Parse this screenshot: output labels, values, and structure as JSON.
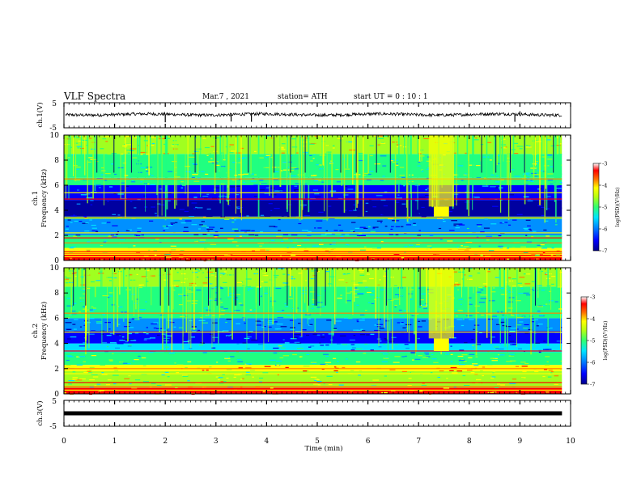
{
  "header": {
    "title": "VLF Spectra",
    "date": "Mar.7 , 2021",
    "station": "station= ATH",
    "start": "start  UT =   0 : 10 : 1"
  },
  "chart_data": [
    {
      "type": "line",
      "panel": "ch1-waveform",
      "ylabel": "ch.1(V)",
      "ylim": [
        -5,
        5
      ],
      "yticks": [
        "5",
        "-5"
      ],
      "xlim": [
        0,
        10
      ],
      "data_extent_x": [
        0,
        9.83
      ],
      "mean_value": 0.3,
      "noise_amplitude": 0.6,
      "spikes": [
        {
          "x": 2.0,
          "y": -2.8
        },
        {
          "x": 3.3,
          "y": -2.5
        },
        {
          "x": 3.7,
          "y": -2.6
        },
        {
          "x": 8.9,
          "y": -2.6
        },
        {
          "x": 9.0,
          "y": 1.6
        }
      ]
    },
    {
      "type": "heatmap",
      "panel": "ch1-spectrogram",
      "ylabel": "ch.1\nFrequency (kHz)",
      "ylim": [
        0,
        10
      ],
      "yticks": [
        "0",
        "2",
        "4",
        "6",
        "8",
        "10"
      ],
      "xlim": [
        0,
        10
      ],
      "data_extent_x": [
        0,
        9.83
      ],
      "background_log_psd": -4.6,
      "bands": [
        {
          "f_lo": 0.0,
          "f_hi": 0.45,
          "level": -3.3
        },
        {
          "f_lo": 0.45,
          "f_hi": 1.0,
          "level": -4.3
        },
        {
          "f_lo": 1.0,
          "f_hi": 2.0,
          "level": -5.0
        },
        {
          "f_lo": 2.0,
          "f_hi": 3.3,
          "level": -6.0
        },
        {
          "f_lo": 3.3,
          "f_hi": 3.5,
          "level": -4.8
        },
        {
          "f_lo": 3.5,
          "f_hi": 4.8,
          "level": -6.8
        },
        {
          "f_lo": 4.8,
          "f_hi": 6.0,
          "level": -6.2
        },
        {
          "f_lo": 6.0,
          "f_hi": 6.6,
          "level": -5.2
        },
        {
          "f_lo": 6.6,
          "f_hi": 8.5,
          "level": -5.0
        },
        {
          "f_lo": 8.5,
          "f_hi": 10.0,
          "level": -4.4
        }
      ],
      "lines_khz": [
        0.3,
        0.55,
        0.7,
        0.9,
        1.4,
        1.8,
        2.2,
        3.4,
        4.9,
        5.4,
        6.5
      ],
      "event": {
        "t_start": 7.3,
        "t_end": 7.6,
        "f_lo": 3.5,
        "f_hi": 4.3,
        "level": -4.0
      },
      "event_wide": {
        "t_start": 7.2,
        "t_end": 7.7,
        "f_lo": 4.3,
        "f_hi": 10,
        "level": -4.3
      },
      "colorbar": {
        "label": "log(PSD)(V²/Hz)",
        "range": [
          -7,
          -3
        ],
        "ticks": [
          "-3",
          "-4",
          "-5",
          "-6",
          "-7"
        ]
      }
    },
    {
      "type": "heatmap",
      "panel": "ch2-spectrogram",
      "ylabel": "ch.2\nFrequency (kHz)",
      "ylim": [
        0,
        10
      ],
      "yticks": [
        "0",
        "2",
        "4",
        "6",
        "8",
        "10"
      ],
      "xlim": [
        0,
        10
      ],
      "data_extent_x": [
        0,
        9.83
      ],
      "background_log_psd": -4.6,
      "bands": [
        {
          "f_lo": 0.0,
          "f_hi": 0.5,
          "level": -3.4
        },
        {
          "f_lo": 0.5,
          "f_hi": 1.8,
          "level": -4.6
        },
        {
          "f_lo": 1.8,
          "f_hi": 2.3,
          "level": -3.9
        },
        {
          "f_lo": 2.3,
          "f_hi": 3.3,
          "level": -5.0
        },
        {
          "f_lo": 3.3,
          "f_hi": 4.0,
          "level": -5.6
        },
        {
          "f_lo": 4.0,
          "f_hi": 5.0,
          "level": -6.2
        },
        {
          "f_lo": 5.0,
          "f_hi": 6.0,
          "level": -6.0
        },
        {
          "f_lo": 6.0,
          "f_hi": 8.5,
          "level": -5.2
        },
        {
          "f_lo": 8.5,
          "f_hi": 10.0,
          "level": -4.5
        }
      ],
      "lines_khz": [
        0.3,
        0.6,
        0.9,
        1.6,
        2.0,
        3.4,
        4.9,
        6.4
      ],
      "event": {
        "t_start": 7.3,
        "t_end": 7.6,
        "f_lo": 3.4,
        "f_hi": 4.4,
        "level": -3.9
      },
      "event_wide": {
        "t_start": 7.2,
        "t_end": 7.7,
        "f_lo": 4.4,
        "f_hi": 10,
        "level": -4.2
      },
      "colorbar": {
        "label": "log(PSD)(V²/Hz)",
        "range": [
          -7,
          -3
        ],
        "ticks": [
          "-3",
          "-4",
          "-5",
          "-6",
          "-7"
        ]
      }
    },
    {
      "type": "line",
      "panel": "ch3-waveform",
      "ylabel": "ch.3(V)",
      "ylim": [
        -5,
        5
      ],
      "yticks": [
        "5",
        "-5"
      ],
      "xlim": [
        0,
        10
      ],
      "data_extent_x": [
        0,
        9.83
      ],
      "constant_value": 0.0,
      "xlabel": "Time (min)",
      "xticks": [
        "0",
        "1",
        "2",
        "3",
        "4",
        "5",
        "6",
        "7",
        "8",
        "9",
        "10"
      ]
    }
  ],
  "colormap": [
    "#0000a0",
    "#0000ff",
    "#0090ff",
    "#00e0ff",
    "#20ff80",
    "#a0ff20",
    "#ffff00",
    "#ff8000",
    "#ff0000",
    "#ffffff"
  ]
}
